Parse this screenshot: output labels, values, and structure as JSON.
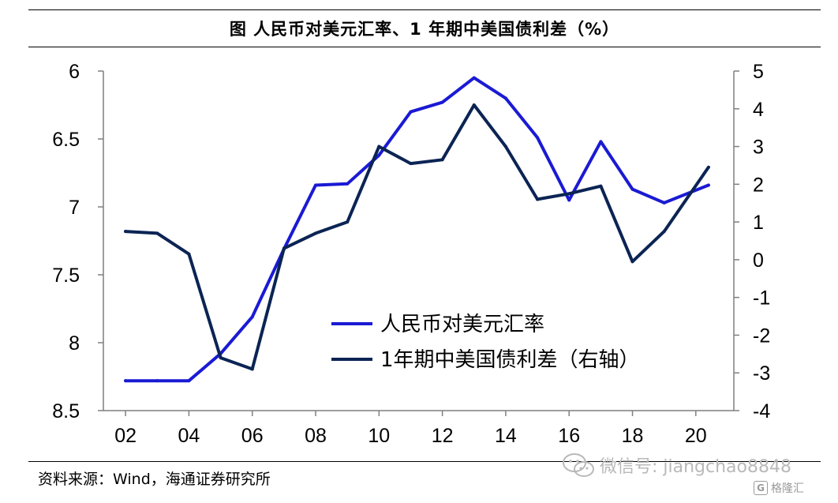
{
  "title": "图  人民币对美元汇率、1 年期中美国债利差（%）",
  "source": "资料来源：Wind，海通证券研究所",
  "watermark": {
    "text": "微信号: jiangchao8848",
    "icon": "wechat-icon"
  },
  "corner_logo": {
    "text": "格隆汇",
    "icon": "gelonghui-logo-icon"
  },
  "colors": {
    "series_rmb": "#1a1ad4",
    "series_spread": "#0b2454",
    "axis": "#7f7f7f"
  },
  "chart_data": {
    "type": "line",
    "x_tick_labels": [
      "02",
      "04",
      "06",
      "08",
      "10",
      "12",
      "14",
      "16",
      "18",
      "20"
    ],
    "x_ticks": [
      2002,
      2004,
      2006,
      2008,
      2010,
      2012,
      2014,
      2016,
      2018,
      2020
    ],
    "xlim": [
      2001.3,
      2021.2
    ],
    "left_axis": {
      "lim": [
        6,
        8.5
      ],
      "inverted": true,
      "ticks": [
        6,
        6.5,
        7,
        7.5,
        8,
        8.5
      ],
      "tick_labels": [
        "6",
        "6.5",
        "7",
        "7.5",
        "8",
        "8.5"
      ]
    },
    "right_axis": {
      "lim": [
        -4,
        5
      ],
      "ticks": [
        5,
        4,
        3,
        2,
        1,
        0,
        -1,
        -2,
        -3,
        -4
      ],
      "tick_labels": [
        "5",
        "4",
        "3",
        "2",
        "1",
        "0",
        "-1",
        "-2",
        "-3",
        "-4"
      ]
    },
    "grid": false,
    "legend_position": "lower-middle",
    "series": [
      {
        "name": "人民币对美元汇率",
        "axis": "left",
        "color": "#1a1ad4",
        "x": [
          2002,
          2003,
          2004,
          2005,
          2006,
          2007,
          2008,
          2009,
          2010,
          2011,
          2012,
          2013,
          2014,
          2015,
          2016,
          2017,
          2018,
          2019,
          2020.4
        ],
        "y": [
          8.28,
          8.28,
          8.28,
          8.08,
          7.81,
          7.31,
          6.84,
          6.83,
          6.62,
          6.3,
          6.23,
          6.05,
          6.2,
          6.49,
          6.95,
          6.52,
          6.87,
          6.97,
          6.84
        ]
      },
      {
        "name": "1年期中美国债利差（右轴）",
        "axis": "right",
        "color": "#0b2454",
        "x": [
          2002,
          2003,
          2004,
          2005,
          2006,
          2007,
          2008,
          2009,
          2010,
          2011,
          2012,
          2013,
          2014,
          2015,
          2016,
          2017,
          2018,
          2019,
          2020.4
        ],
        "y": [
          0.75,
          0.7,
          0.15,
          -2.6,
          -2.9,
          0.3,
          0.7,
          1.0,
          3.0,
          2.55,
          2.65,
          4.1,
          3.0,
          1.6,
          1.75,
          1.95,
          -0.05,
          0.75,
          2.45
        ]
      }
    ]
  }
}
